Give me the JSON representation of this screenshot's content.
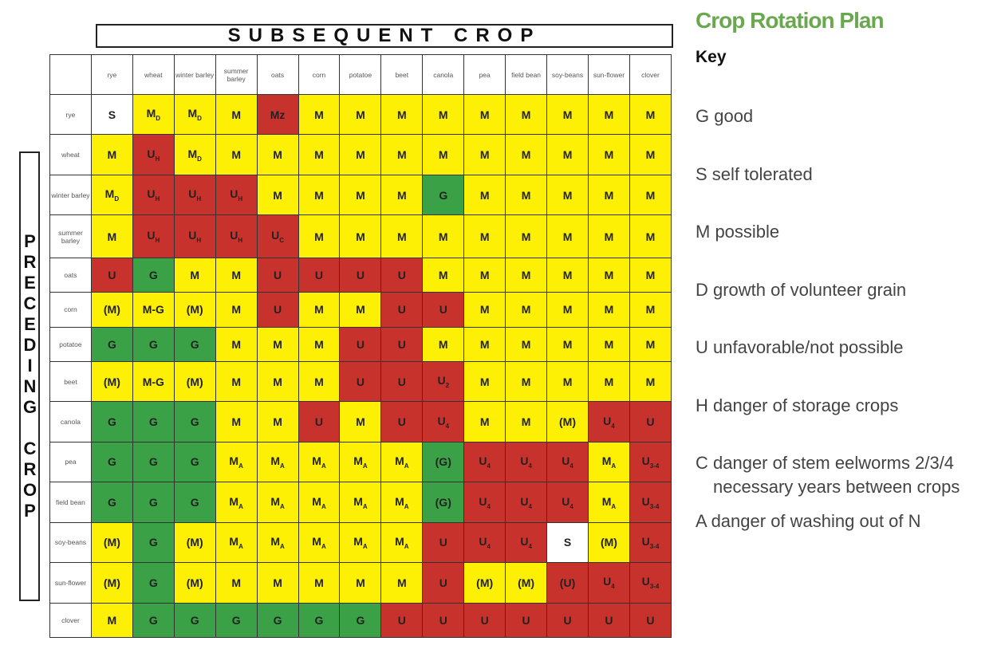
{
  "header": {
    "subsequent": "SUBSEQUENT CROP",
    "preceding": "PRECEDING CROP"
  },
  "table": {
    "columns": [
      "rye",
      "wheat",
      "winter barley",
      "summer barley",
      "oats",
      "corn",
      "potatoe",
      "beet",
      "canola",
      "pea",
      "field bean",
      "soy-beans",
      "sun-flower",
      "clover"
    ],
    "rows": [
      {
        "label": "rye",
        "cells": [
          {
            "text": "S",
            "color": "white"
          },
          {
            "text": "M",
            "sub": "D",
            "color": "yellow"
          },
          {
            "text": "M",
            "sub": "D",
            "color": "yellow"
          },
          {
            "text": "M",
            "color": "yellow"
          },
          {
            "text": "Mz",
            "color": "red"
          },
          {
            "text": "M",
            "color": "yellow"
          },
          {
            "text": "M",
            "color": "yellow"
          },
          {
            "text": "M",
            "color": "yellow"
          },
          {
            "text": "M",
            "color": "yellow"
          },
          {
            "text": "M",
            "color": "yellow"
          },
          {
            "text": "M",
            "color": "yellow"
          },
          {
            "text": "M",
            "color": "yellow"
          },
          {
            "text": "M",
            "color": "yellow"
          },
          {
            "text": "M",
            "color": "yellow"
          }
        ]
      },
      {
        "label": "wheat",
        "cells": [
          {
            "text": "M",
            "color": "yellow"
          },
          {
            "text": "U",
            "sub": "H",
            "color": "red"
          },
          {
            "text": "M",
            "sub": "D",
            "color": "yellow"
          },
          {
            "text": "M",
            "color": "yellow"
          },
          {
            "text": "M",
            "color": "yellow"
          },
          {
            "text": "M",
            "color": "yellow"
          },
          {
            "text": "M",
            "color": "yellow"
          },
          {
            "text": "M",
            "color": "yellow"
          },
          {
            "text": "M",
            "color": "yellow"
          },
          {
            "text": "M",
            "color": "yellow"
          },
          {
            "text": "M",
            "color": "yellow"
          },
          {
            "text": "M",
            "color": "yellow"
          },
          {
            "text": "M",
            "color": "yellow"
          },
          {
            "text": "M",
            "color": "yellow"
          }
        ]
      },
      {
        "label": "winter barley",
        "cells": [
          {
            "text": "M",
            "sub": "D",
            "color": "yellow"
          },
          {
            "text": "U",
            "sub": "H",
            "color": "red"
          },
          {
            "text": "U",
            "sub": "H",
            "color": "red"
          },
          {
            "text": "U",
            "sub": "H",
            "color": "red"
          },
          {
            "text": "M",
            "color": "yellow"
          },
          {
            "text": "M",
            "color": "yellow"
          },
          {
            "text": "M",
            "color": "yellow"
          },
          {
            "text": "M",
            "color": "yellow"
          },
          {
            "text": "G",
            "color": "green"
          },
          {
            "text": "M",
            "color": "yellow"
          },
          {
            "text": "M",
            "color": "yellow"
          },
          {
            "text": "M",
            "color": "yellow"
          },
          {
            "text": "M",
            "color": "yellow"
          },
          {
            "text": "M",
            "color": "yellow"
          }
        ]
      },
      {
        "label": "summer barley",
        "cells": [
          {
            "text": "M",
            "color": "yellow"
          },
          {
            "text": "U",
            "sub": "H",
            "color": "red"
          },
          {
            "text": "U",
            "sub": "H",
            "color": "red"
          },
          {
            "text": "U",
            "sub": "H",
            "color": "red"
          },
          {
            "text": "U",
            "sub": "C",
            "color": "red"
          },
          {
            "text": "M",
            "color": "yellow"
          },
          {
            "text": "M",
            "color": "yellow"
          },
          {
            "text": "M",
            "color": "yellow"
          },
          {
            "text": "M",
            "color": "yellow"
          },
          {
            "text": "M",
            "color": "yellow"
          },
          {
            "text": "M",
            "color": "yellow"
          },
          {
            "text": "M",
            "color": "yellow"
          },
          {
            "text": "M",
            "color": "yellow"
          },
          {
            "text": "M",
            "color": "yellow"
          }
        ]
      },
      {
        "label": "oats",
        "cells": [
          {
            "text": "U",
            "color": "red"
          },
          {
            "text": "G",
            "color": "green"
          },
          {
            "text": "M",
            "color": "yellow"
          },
          {
            "text": "M",
            "color": "yellow"
          },
          {
            "text": "U",
            "color": "red"
          },
          {
            "text": "U",
            "color": "red"
          },
          {
            "text": "U",
            "color": "red"
          },
          {
            "text": "U",
            "color": "red"
          },
          {
            "text": "M",
            "color": "yellow"
          },
          {
            "text": "M",
            "color": "yellow"
          },
          {
            "text": "M",
            "color": "yellow"
          },
          {
            "text": "M",
            "color": "yellow"
          },
          {
            "text": "M",
            "color": "yellow"
          },
          {
            "text": "M",
            "color": "yellow"
          }
        ]
      },
      {
        "label": "corn",
        "cells": [
          {
            "text": "(M)",
            "color": "yellow"
          },
          {
            "text": "M-G",
            "color": "yellow"
          },
          {
            "text": "(M)",
            "color": "yellow"
          },
          {
            "text": "M",
            "color": "yellow"
          },
          {
            "text": "U",
            "color": "red"
          },
          {
            "text": "M",
            "color": "yellow"
          },
          {
            "text": "M",
            "color": "yellow"
          },
          {
            "text": "U",
            "color": "red"
          },
          {
            "text": "U",
            "color": "red"
          },
          {
            "text": "M",
            "color": "yellow"
          },
          {
            "text": "M",
            "color": "yellow"
          },
          {
            "text": "M",
            "color": "yellow"
          },
          {
            "text": "M",
            "color": "yellow"
          },
          {
            "text": "M",
            "color": "yellow"
          }
        ]
      },
      {
        "label": "potatoe",
        "cells": [
          {
            "text": "G",
            "color": "green"
          },
          {
            "text": "G",
            "color": "green"
          },
          {
            "text": "G",
            "color": "green"
          },
          {
            "text": "M",
            "color": "yellow"
          },
          {
            "text": "M",
            "color": "yellow"
          },
          {
            "text": "M",
            "color": "yellow"
          },
          {
            "text": "U",
            "color": "red"
          },
          {
            "text": "U",
            "color": "red"
          },
          {
            "text": "M",
            "color": "yellow"
          },
          {
            "text": "M",
            "color": "yellow"
          },
          {
            "text": "M",
            "color": "yellow"
          },
          {
            "text": "M",
            "color": "yellow"
          },
          {
            "text": "M",
            "color": "yellow"
          },
          {
            "text": "M",
            "color": "yellow"
          }
        ]
      },
      {
        "label": "beet",
        "cells": [
          {
            "text": "(M)",
            "color": "yellow"
          },
          {
            "text": "M-G",
            "color": "yellow"
          },
          {
            "text": "(M)",
            "color": "yellow"
          },
          {
            "text": "M",
            "color": "yellow"
          },
          {
            "text": "M",
            "color": "yellow"
          },
          {
            "text": "M",
            "color": "yellow"
          },
          {
            "text": "U",
            "color": "red"
          },
          {
            "text": "U",
            "color": "red"
          },
          {
            "text": "U",
            "sub": "2",
            "color": "red"
          },
          {
            "text": "M",
            "color": "yellow"
          },
          {
            "text": "M",
            "color": "yellow"
          },
          {
            "text": "M",
            "color": "yellow"
          },
          {
            "text": "M",
            "color": "yellow"
          },
          {
            "text": "M",
            "color": "yellow"
          }
        ]
      },
      {
        "label": "canola",
        "cells": [
          {
            "text": "G",
            "color": "green"
          },
          {
            "text": "G",
            "color": "green"
          },
          {
            "text": "G",
            "color": "green"
          },
          {
            "text": "M",
            "color": "yellow"
          },
          {
            "text": "M",
            "color": "yellow"
          },
          {
            "text": "U",
            "color": "red"
          },
          {
            "text": "M",
            "color": "yellow"
          },
          {
            "text": "U",
            "color": "red"
          },
          {
            "text": "U",
            "sub": "4",
            "color": "red"
          },
          {
            "text": "M",
            "color": "yellow"
          },
          {
            "text": "M",
            "color": "yellow"
          },
          {
            "text": "(M)",
            "color": "yellow"
          },
          {
            "text": "U",
            "sub": "4",
            "color": "red"
          },
          {
            "text": "U",
            "color": "red"
          }
        ]
      },
      {
        "label": "pea",
        "cells": [
          {
            "text": "G",
            "color": "green"
          },
          {
            "text": "G",
            "color": "green"
          },
          {
            "text": "G",
            "color": "green"
          },
          {
            "text": "M",
            "sub": "A",
            "color": "yellow"
          },
          {
            "text": "M",
            "sub": "A",
            "color": "yellow"
          },
          {
            "text": "M",
            "sub": "A",
            "color": "yellow"
          },
          {
            "text": "M",
            "sub": "A",
            "color": "yellow"
          },
          {
            "text": "M",
            "sub": "A",
            "color": "yellow"
          },
          {
            "text": "(G)",
            "color": "green"
          },
          {
            "text": "U",
            "sub": "4",
            "color": "red"
          },
          {
            "text": "U",
            "sub": "4",
            "color": "red"
          },
          {
            "text": "U",
            "sub": "4",
            "color": "red"
          },
          {
            "text": "M",
            "sub": "A",
            "color": "yellow"
          },
          {
            "text": "U",
            "sub": "3-4",
            "color": "red"
          }
        ]
      },
      {
        "label": "field bean",
        "cells": [
          {
            "text": "G",
            "color": "green"
          },
          {
            "text": "G",
            "color": "green"
          },
          {
            "text": "G",
            "color": "green"
          },
          {
            "text": "M",
            "sub": "A",
            "color": "yellow"
          },
          {
            "text": "M",
            "sub": "A",
            "color": "yellow"
          },
          {
            "text": "M",
            "sub": "A",
            "color": "yellow"
          },
          {
            "text": "M",
            "sub": "A",
            "color": "yellow"
          },
          {
            "text": "M",
            "sub": "A",
            "color": "yellow"
          },
          {
            "text": "(G)",
            "color": "green"
          },
          {
            "text": "U",
            "sub": "4",
            "color": "red"
          },
          {
            "text": "U",
            "sub": "4",
            "color": "red"
          },
          {
            "text": "U",
            "sub": "4",
            "color": "red"
          },
          {
            "text": "M",
            "sub": "A",
            "color": "yellow"
          },
          {
            "text": "U",
            "sub": "3-4",
            "color": "red"
          }
        ]
      },
      {
        "label": "soy-beans",
        "cells": [
          {
            "text": "(M)",
            "color": "yellow"
          },
          {
            "text": "G",
            "color": "green"
          },
          {
            "text": "(M)",
            "color": "yellow"
          },
          {
            "text": "M",
            "sub": "A",
            "color": "yellow"
          },
          {
            "text": "M",
            "sub": "A",
            "color": "yellow"
          },
          {
            "text": "M",
            "sub": "A",
            "color": "yellow"
          },
          {
            "text": "M",
            "sub": "A",
            "color": "yellow"
          },
          {
            "text": "M",
            "sub": "A",
            "color": "yellow"
          },
          {
            "text": "U",
            "color": "red"
          },
          {
            "text": "U",
            "sub": "4",
            "color": "red"
          },
          {
            "text": "U",
            "sub": "4",
            "color": "red"
          },
          {
            "text": "S",
            "color": "white"
          },
          {
            "text": "(M)",
            "color": "yellow"
          },
          {
            "text": "U",
            "sub": "3-4",
            "color": "red"
          }
        ]
      },
      {
        "label": "sun-flower",
        "cells": [
          {
            "text": "(M)",
            "color": "yellow"
          },
          {
            "text": "G",
            "color": "green"
          },
          {
            "text": "(M)",
            "color": "yellow"
          },
          {
            "text": "M",
            "color": "yellow"
          },
          {
            "text": "M",
            "color": "yellow"
          },
          {
            "text": "M",
            "color": "yellow"
          },
          {
            "text": "M",
            "color": "yellow"
          },
          {
            "text": "M",
            "color": "yellow"
          },
          {
            "text": "U",
            "color": "red"
          },
          {
            "text": "(M)",
            "color": "yellow"
          },
          {
            "text": "(M)",
            "color": "yellow"
          },
          {
            "text": "(U)",
            "color": "red"
          },
          {
            "text": "U",
            "sub": "4",
            "color": "red"
          },
          {
            "text": "U",
            "sub": "3-4",
            "color": "red"
          }
        ]
      },
      {
        "label": "clover",
        "cells": [
          {
            "text": "M",
            "color": "yellow"
          },
          {
            "text": "G",
            "color": "green"
          },
          {
            "text": "G",
            "color": "green"
          },
          {
            "text": "G",
            "color": "green"
          },
          {
            "text": "G",
            "color": "green"
          },
          {
            "text": "G",
            "color": "green"
          },
          {
            "text": "G",
            "color": "green"
          },
          {
            "text": "U",
            "color": "red"
          },
          {
            "text": "U",
            "color": "red"
          },
          {
            "text": "U",
            "color": "red"
          },
          {
            "text": "U",
            "color": "red"
          },
          {
            "text": "U",
            "color": "red"
          },
          {
            "text": "U",
            "color": "red"
          },
          {
            "text": "U",
            "color": "red"
          }
        ]
      }
    ]
  },
  "side": {
    "title": "Crop Rotation Plan",
    "key": {
      "title": "Key",
      "items": [
        [
          "G good"
        ],
        [
          "S self tolerated"
        ],
        [
          "M possible"
        ],
        [
          "D growth of volunteer grain"
        ],
        [
          "U unfavorable/not possible"
        ],
        [
          "H danger of storage crops"
        ],
        [
          "C danger of stem eelworms 2/3/4",
          "necessary years between crops"
        ],
        [
          "A danger of washing out of N"
        ]
      ]
    }
  }
}
